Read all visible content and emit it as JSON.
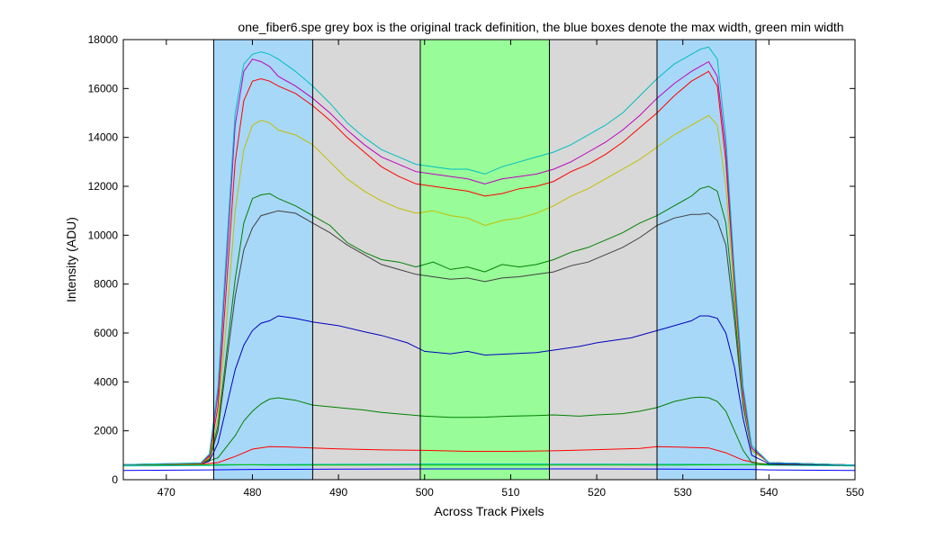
{
  "chart_data": {
    "type": "line",
    "title": "one_fiber6.spe  grey box is the original track definition,  the blue boxes denote the max width, green min width",
    "xlabel": "Across Track Pixels",
    "ylabel": "Intensity (ADU)",
    "xlim": [
      465,
      550
    ],
    "ylim": [
      0,
      18000
    ],
    "xticks": [
      470,
      480,
      490,
      500,
      510,
      520,
      530,
      540,
      550
    ],
    "yticks": [
      0,
      2000,
      4000,
      6000,
      8000,
      10000,
      12000,
      14000,
      16000,
      18000
    ],
    "grid": false,
    "legend": "none",
    "regions": [
      {
        "label": "max width left",
        "x0": 475.5,
        "x1": 487,
        "color": "#a8d8f8"
      },
      {
        "label": "original track definition",
        "x0": 487,
        "x1": 499.5,
        "color": "#d8d8d8"
      },
      {
        "label": "min width",
        "x0": 499.5,
        "x1": 514.5,
        "color": "#98fc98"
      },
      {
        "label": "original track definition",
        "x0": 514.5,
        "x1": 527,
        "color": "#d8d8d8"
      },
      {
        "label": "max width right",
        "x0": 527,
        "x1": 538.5,
        "color": "#a8d8f8"
      }
    ],
    "vlines": [
      475.5,
      487,
      499.5,
      514.5,
      527,
      538.5
    ],
    "series": [
      {
        "color": "#0000ff",
        "x": [
          465,
          475,
          480,
          490,
          500,
          510,
          520,
          530,
          538,
          540,
          550
        ],
        "values": [
          380,
          400,
          420,
          430,
          440,
          440,
          440,
          430,
          420,
          400,
          380
        ]
      },
      {
        "color": "#00bfbf",
        "x": [
          465,
          475,
          480,
          490,
          500,
          510,
          520,
          530,
          538,
          540,
          550
        ],
        "values": [
          560,
          580,
          620,
          630,
          640,
          640,
          640,
          630,
          620,
          590,
          560
        ]
      },
      {
        "color": "#00bf00",
        "x": [
          465,
          474,
          476,
          478,
          480,
          482,
          490,
          500,
          510,
          520,
          530,
          535,
          537,
          539,
          541,
          550
        ],
        "values": [
          600,
          610,
          620,
          620,
          610,
          600,
          600,
          600,
          600,
          600,
          600,
          610,
          620,
          620,
          610,
          600
        ]
      },
      {
        "color": "#ff0000",
        "x": [
          465,
          474,
          476,
          478,
          480,
          482,
          484,
          487,
          490,
          495,
          500,
          505,
          510,
          515,
          520,
          525,
          527,
          530,
          533,
          535,
          537,
          539,
          541,
          550
        ],
        "values": [
          620,
          640,
          700,
          950,
          1250,
          1350,
          1340,
          1300,
          1260,
          1220,
          1200,
          1160,
          1160,
          1180,
          1230,
          1280,
          1350,
          1330,
          1300,
          1100,
          800,
          650,
          620,
          600
        ]
      },
      {
        "color": "#008000",
        "x": [
          465,
          474,
          476,
          478,
          479,
          480,
          481,
          482,
          483,
          485,
          487,
          490,
          493,
          495,
          500,
          503,
          505,
          507,
          510,
          513,
          515,
          518,
          520,
          523,
          525,
          527,
          529,
          531,
          532,
          533,
          534,
          535,
          536,
          537,
          538,
          540,
          550
        ],
        "values": [
          620,
          650,
          900,
          1800,
          2400,
          2800,
          3100,
          3300,
          3350,
          3250,
          3050,
          2950,
          2850,
          2750,
          2600,
          2550,
          2550,
          2560,
          2600,
          2620,
          2650,
          2600,
          2650,
          2700,
          2800,
          2950,
          3200,
          3350,
          3380,
          3350,
          3200,
          2800,
          2000,
          1200,
          700,
          630,
          600
        ]
      },
      {
        "color": "#0000bf",
        "x": [
          465,
          474,
          475,
          476,
          477,
          478,
          479,
          480,
          481,
          482,
          483,
          485,
          487,
          490,
          493,
          495,
          498,
          500,
          503,
          505,
          507,
          510,
          513,
          515,
          518,
          520,
          522,
          524,
          526,
          528,
          530,
          531,
          532,
          533,
          534,
          535,
          536,
          537,
          538,
          540,
          550
        ],
        "values": [
          620,
          650,
          750,
          1500,
          3000,
          4500,
          5500,
          6100,
          6400,
          6500,
          6700,
          6600,
          6450,
          6300,
          6050,
          5900,
          5600,
          5250,
          5150,
          5250,
          5100,
          5150,
          5200,
          5300,
          5450,
          5600,
          5700,
          5800,
          6000,
          6200,
          6400,
          6500,
          6700,
          6700,
          6600,
          6000,
          4600,
          2500,
          1000,
          650,
          600
        ]
      },
      {
        "color": "#404040",
        "x": [
          465,
          474,
          475,
          476,
          477,
          478,
          479,
          480,
          481,
          482,
          483,
          485,
          487,
          489,
          491,
          493,
          495,
          497,
          499,
          501,
          503,
          505,
          507,
          509,
          511,
          513,
          515,
          517,
          519,
          521,
          523,
          525,
          527,
          529,
          531,
          532,
          533,
          534,
          535,
          536,
          537,
          538,
          540,
          550
        ],
        "values": [
          620,
          660,
          800,
          2000,
          4800,
          7500,
          9400,
          10300,
          10800,
          10900,
          11000,
          10900,
          10500,
          10100,
          9600,
          9200,
          8800,
          8600,
          8400,
          8300,
          8200,
          8250,
          8100,
          8250,
          8300,
          8400,
          8500,
          8750,
          8900,
          9200,
          9500,
          9900,
          10400,
          10700,
          10850,
          10850,
          10900,
          10600,
          9600,
          6500,
          3000,
          1200,
          700,
          600
        ]
      },
      {
        "color": "#008000",
        "x": [
          465,
          474,
          475,
          476,
          477,
          478,
          479,
          480,
          481,
          482,
          483,
          485,
          487,
          489,
          491,
          493,
          495,
          497,
          499,
          501,
          503,
          505,
          507,
          509,
          511,
          513,
          515,
          517,
          519,
          521,
          523,
          525,
          527,
          529,
          531,
          532,
          533,
          534,
          535,
          536,
          537,
          538,
          540,
          550
        ],
        "values": [
          620,
          660,
          850,
          2200,
          5200,
          8200,
          10500,
          11500,
          11650,
          11700,
          11500,
          11200,
          10800,
          10400,
          9700,
          9300,
          9000,
          8900,
          8700,
          8900,
          8600,
          8700,
          8500,
          8800,
          8700,
          8800,
          9000,
          9300,
          9500,
          9800,
          10100,
          10500,
          10800,
          11200,
          11600,
          11900,
          12000,
          11800,
          10500,
          7000,
          3200,
          1200,
          700,
          600
        ]
      },
      {
        "color": "#bfbf00",
        "x": [
          465,
          474,
          475,
          476,
          477,
          478,
          479,
          480,
          481,
          482,
          483,
          485,
          487,
          489,
          491,
          493,
          495,
          497,
          499,
          501,
          503,
          505,
          507,
          509,
          511,
          513,
          515,
          517,
          519,
          521,
          523,
          525,
          527,
          529,
          531,
          532,
          533,
          534,
          535,
          536,
          537,
          538,
          540,
          550
        ],
        "values": [
          620,
          660,
          900,
          2500,
          6500,
          11000,
          13500,
          14500,
          14700,
          14600,
          14300,
          14100,
          13700,
          13000,
          12300,
          11800,
          11400,
          11100,
          10900,
          11000,
          10800,
          10700,
          10400,
          10600,
          10700,
          10900,
          11200,
          11600,
          11900,
          12300,
          12700,
          13100,
          13600,
          14100,
          14500,
          14700,
          14900,
          14500,
          12000,
          7500,
          3300,
          1200,
          700,
          600
        ]
      },
      {
        "color": "#ff0000",
        "x": [
          465,
          474,
          475,
          476,
          477,
          478,
          479,
          480,
          481,
          482,
          483,
          485,
          487,
          489,
          491,
          493,
          495,
          497,
          499,
          501,
          503,
          505,
          507,
          509,
          511,
          513,
          515,
          517,
          519,
          521,
          523,
          525,
          527,
          529,
          531,
          532,
          533,
          534,
          535,
          536,
          537,
          538,
          540,
          550
        ],
        "values": [
          620,
          670,
          950,
          3000,
          8000,
          13000,
          15500,
          16300,
          16400,
          16300,
          16100,
          15800,
          15300,
          14700,
          14000,
          13400,
          12800,
          12400,
          12100,
          12000,
          11900,
          11800,
          11600,
          11700,
          11900,
          12000,
          12200,
          12600,
          12900,
          13300,
          13800,
          14400,
          15000,
          15700,
          16300,
          16500,
          16700,
          16100,
          13000,
          8000,
          3500,
          1300,
          700,
          600
        ]
      },
      {
        "color": "#bf00bf",
        "x": [
          465,
          474,
          475,
          476,
          477,
          478,
          479,
          480,
          481,
          482,
          483,
          485,
          487,
          489,
          491,
          493,
          495,
          497,
          499,
          501,
          503,
          505,
          507,
          509,
          511,
          513,
          515,
          517,
          519,
          521,
          523,
          525,
          527,
          529,
          531,
          532,
          533,
          534,
          535,
          536,
          537,
          538,
          540,
          550
        ],
        "values": [
          620,
          680,
          1000,
          3500,
          9000,
          14500,
          16700,
          17200,
          17100,
          16900,
          16500,
          16100,
          15600,
          15000,
          14300,
          13700,
          13200,
          12900,
          12600,
          12500,
          12400,
          12300,
          12100,
          12300,
          12400,
          12500,
          12700,
          13000,
          13400,
          13800,
          14300,
          14900,
          15600,
          16200,
          16700,
          16900,
          17100,
          16500,
          13500,
          8200,
          3600,
          1300,
          700,
          600
        ]
      },
      {
        "color": "#00bfbf",
        "x": [
          465,
          474,
          475,
          476,
          477,
          478,
          479,
          480,
          481,
          482,
          483,
          485,
          487,
          489,
          491,
          493,
          495,
          497,
          499,
          501,
          503,
          505,
          507,
          509,
          511,
          513,
          515,
          517,
          519,
          521,
          523,
          525,
          527,
          529,
          531,
          532,
          533,
          534,
          535,
          536,
          537,
          538,
          540,
          550
        ],
        "values": [
          620,
          690,
          1050,
          3800,
          9500,
          15000,
          17000,
          17400,
          17500,
          17400,
          17200,
          16700,
          16100,
          15400,
          14600,
          14000,
          13500,
          13200,
          12900,
          12800,
          12700,
          12700,
          12500,
          12800,
          13000,
          13200,
          13400,
          13700,
          14100,
          14500,
          15000,
          15700,
          16400,
          17000,
          17400,
          17600,
          17700,
          17200,
          14000,
          8500,
          3800,
          1400,
          700,
          600
        ]
      }
    ]
  }
}
